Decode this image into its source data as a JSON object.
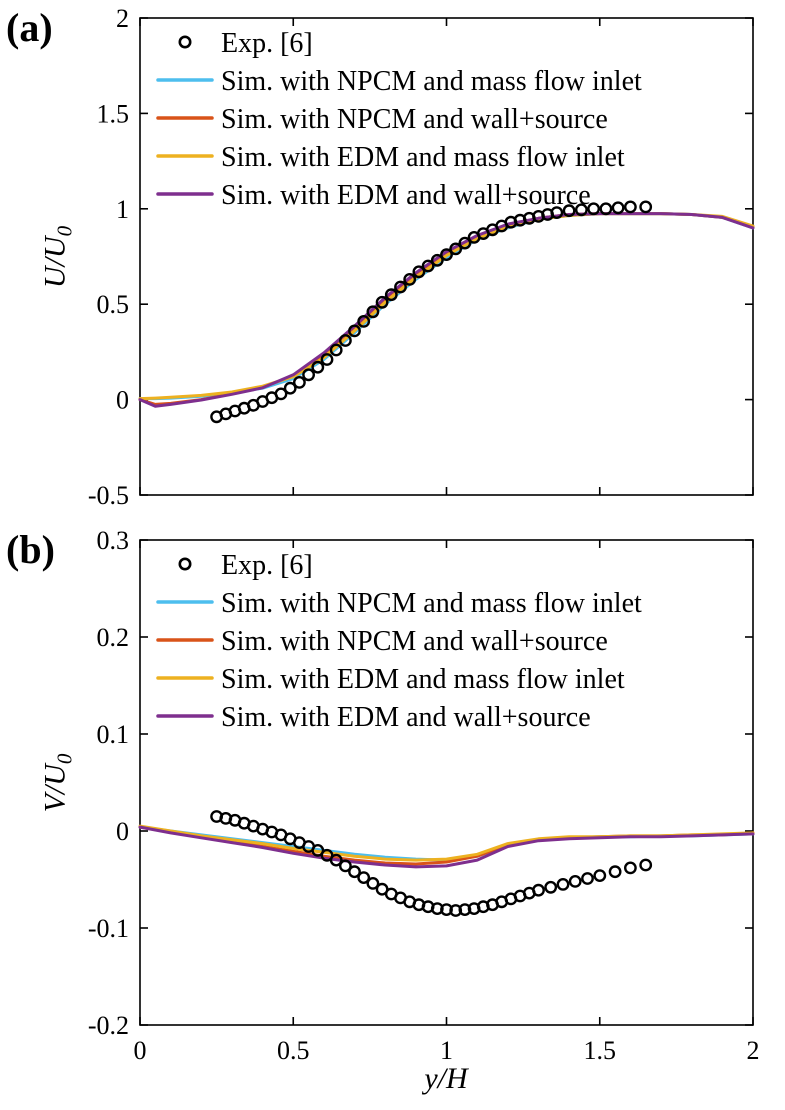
{
  "xlabel": "y/H",
  "panels": [
    {
      "label": "(a)"
    },
    {
      "label": "(b)"
    }
  ],
  "colors": {
    "exp": "#000000",
    "npcm_massflow": "#4dbeee",
    "npcm_wallsource": "#d95319",
    "edm_massflow": "#edb120",
    "edm_wallsource": "#7e2f8e"
  },
  "chart_data": [
    {
      "type": "line",
      "panel": "(a)",
      "ylabel": "U/U",
      "ylabel_sub": "0",
      "xlabel": "y/H",
      "xlim": [
        0,
        2
      ],
      "ylim": [
        -0.5,
        2
      ],
      "xticks": [
        0,
        0.5,
        1,
        1.5,
        2
      ],
      "xtick_labels": [
        "0",
        "0.5",
        "1",
        "1.5",
        "2"
      ],
      "show_xtick_labels": false,
      "yticks": [
        -0.5,
        0,
        0.5,
        1,
        1.5,
        2
      ],
      "ytick_labels": [
        "-0.5",
        "0",
        "0.5",
        "1",
        "1.5",
        "2"
      ],
      "grid": false,
      "legend_position": "top-left-inside",
      "exp": {
        "name": "Exp. [6]",
        "x": [
          0.25,
          0.28,
          0.31,
          0.34,
          0.37,
          0.4,
          0.43,
          0.46,
          0.49,
          0.52,
          0.55,
          0.58,
          0.61,
          0.64,
          0.67,
          0.7,
          0.73,
          0.76,
          0.79,
          0.82,
          0.85,
          0.88,
          0.91,
          0.94,
          0.97,
          1.0,
          1.03,
          1.06,
          1.09,
          1.12,
          1.15,
          1.18,
          1.21,
          1.24,
          1.27,
          1.3,
          1.33,
          1.36,
          1.4,
          1.44,
          1.48,
          1.52,
          1.56,
          1.6,
          1.65
        ],
        "y": [
          -0.09,
          -0.075,
          -0.06,
          -0.045,
          -0.03,
          -0.01,
          0.01,
          0.03,
          0.06,
          0.09,
          0.13,
          0.17,
          0.21,
          0.26,
          0.31,
          0.36,
          0.41,
          0.46,
          0.51,
          0.55,
          0.59,
          0.63,
          0.67,
          0.7,
          0.73,
          0.76,
          0.79,
          0.82,
          0.85,
          0.87,
          0.89,
          0.91,
          0.93,
          0.94,
          0.95,
          0.96,
          0.97,
          0.98,
          0.99,
          0.995,
          1.0,
          1.0,
          1.005,
          1.01,
          1.01
        ]
      },
      "series": [
        {
          "name": "Sim. with NPCM and mass flow inlet",
          "color": "#4dbeee",
          "x": [
            0,
            0.05,
            0.1,
            0.2,
            0.3,
            0.4,
            0.5,
            0.6,
            0.7,
            0.8,
            0.9,
            1.0,
            1.1,
            1.2,
            1.3,
            1.4,
            1.5,
            1.6,
            1.7,
            1.8,
            1.9,
            2.0
          ],
          "y": [
            0.005,
            0.005,
            0.008,
            0.018,
            0.035,
            0.06,
            0.11,
            0.21,
            0.35,
            0.5,
            0.63,
            0.745,
            0.84,
            0.9,
            0.945,
            0.965,
            0.975,
            0.975,
            0.975,
            0.97,
            0.955,
            0.9
          ]
        },
        {
          "name": "Sim. with NPCM and wall+source",
          "color": "#d95319",
          "x": [
            0,
            0.05,
            0.1,
            0.2,
            0.3,
            0.4,
            0.5,
            0.6,
            0.7,
            0.8,
            0.9,
            1.0,
            1.1,
            1.2,
            1.3,
            1.4,
            1.5,
            1.6,
            1.7,
            1.8,
            1.9,
            2.0
          ],
          "y": [
            0.0,
            -0.025,
            -0.02,
            0.0,
            0.03,
            0.065,
            0.125,
            0.24,
            0.38,
            0.53,
            0.66,
            0.77,
            0.855,
            0.915,
            0.95,
            0.97,
            0.975,
            0.975,
            0.975,
            0.97,
            0.955,
            0.905
          ]
        },
        {
          "name": "Sim. with EDM and mass flow inlet",
          "color": "#edb120",
          "x": [
            0,
            0.05,
            0.1,
            0.2,
            0.3,
            0.4,
            0.5,
            0.6,
            0.7,
            0.8,
            0.9,
            1.0,
            1.1,
            1.2,
            1.3,
            1.4,
            1.5,
            1.6,
            1.7,
            1.8,
            1.9,
            2.0
          ],
          "y": [
            0.005,
            0.008,
            0.012,
            0.022,
            0.04,
            0.07,
            0.12,
            0.22,
            0.36,
            0.51,
            0.64,
            0.755,
            0.845,
            0.905,
            0.945,
            0.965,
            0.975,
            0.975,
            0.975,
            0.97,
            0.96,
            0.91
          ]
        },
        {
          "name": "Sim. with EDM and wall+source",
          "color": "#7e2f8e",
          "x": [
            0,
            0.05,
            0.1,
            0.2,
            0.3,
            0.4,
            0.5,
            0.6,
            0.7,
            0.8,
            0.9,
            1.0,
            1.1,
            1.2,
            1.3,
            1.4,
            1.5,
            1.6,
            1.7,
            1.8,
            1.9,
            2.0
          ],
          "y": [
            0.0,
            -0.035,
            -0.025,
            -0.002,
            0.028,
            0.062,
            0.13,
            0.245,
            0.385,
            0.535,
            0.665,
            0.775,
            0.86,
            0.92,
            0.95,
            0.97,
            0.975,
            0.975,
            0.975,
            0.97,
            0.955,
            0.9
          ]
        }
      ]
    },
    {
      "type": "line",
      "panel": "(b)",
      "ylabel": "V/U",
      "ylabel_sub": "0",
      "xlabel": "y/H",
      "xlim": [
        0,
        2
      ],
      "ylim": [
        -0.2,
        0.3
      ],
      "xticks": [
        0,
        0.5,
        1,
        1.5,
        2
      ],
      "xtick_labels": [
        "0",
        "0.5",
        "1",
        "1.5",
        "2"
      ],
      "show_xtick_labels": true,
      "yticks": [
        -0.2,
        -0.1,
        0,
        0.1,
        0.2,
        0.3
      ],
      "ytick_labels": [
        "-0.2",
        "-0.1",
        "0",
        "0.1",
        "0.2",
        "0.3"
      ],
      "grid": false,
      "legend_position": "top-left-inside",
      "exp": {
        "name": "Exp. [6]",
        "x": [
          0.25,
          0.28,
          0.31,
          0.34,
          0.37,
          0.4,
          0.43,
          0.46,
          0.49,
          0.52,
          0.55,
          0.58,
          0.61,
          0.64,
          0.67,
          0.7,
          0.73,
          0.76,
          0.79,
          0.82,
          0.85,
          0.88,
          0.91,
          0.94,
          0.97,
          1.0,
          1.03,
          1.06,
          1.09,
          1.12,
          1.15,
          1.18,
          1.21,
          1.24,
          1.27,
          1.3,
          1.34,
          1.38,
          1.42,
          1.46,
          1.5,
          1.55,
          1.6,
          1.65
        ],
        "y": [
          0.015,
          0.013,
          0.011,
          0.008,
          0.005,
          0.002,
          -0.001,
          -0.004,
          -0.008,
          -0.012,
          -0.016,
          -0.02,
          -0.025,
          -0.03,
          -0.036,
          -0.042,
          -0.048,
          -0.054,
          -0.06,
          -0.065,
          -0.069,
          -0.073,
          -0.076,
          -0.078,
          -0.08,
          -0.081,
          -0.082,
          -0.081,
          -0.08,
          -0.078,
          -0.076,
          -0.073,
          -0.07,
          -0.067,
          -0.064,
          -0.061,
          -0.058,
          -0.055,
          -0.052,
          -0.049,
          -0.046,
          -0.042,
          -0.038,
          -0.035
        ]
      },
      "series": [
        {
          "name": "Sim. with NPCM and mass flow inlet",
          "color": "#4dbeee",
          "x": [
            0,
            0.1,
            0.2,
            0.3,
            0.4,
            0.5,
            0.6,
            0.7,
            0.8,
            0.9,
            1.0,
            1.1,
            1.2,
            1.3,
            1.4,
            1.5,
            1.6,
            1.7,
            1.8,
            1.9,
            2.0
          ],
          "y": [
            0.004,
            0.0,
            -0.004,
            -0.008,
            -0.012,
            -0.016,
            -0.02,
            -0.024,
            -0.027,
            -0.029,
            -0.03,
            -0.026,
            -0.015,
            -0.009,
            -0.007,
            -0.006,
            -0.006,
            -0.005,
            -0.005,
            -0.004,
            -0.003
          ]
        },
        {
          "name": "Sim. with NPCM and wall+source",
          "color": "#d95319",
          "x": [
            0,
            0.1,
            0.2,
            0.3,
            0.4,
            0.5,
            0.6,
            0.7,
            0.8,
            0.9,
            1.0,
            1.1,
            1.2,
            1.3,
            1.4,
            1.5,
            1.6,
            1.7,
            1.8,
            1.9,
            2.0
          ],
          "y": [
            0.004,
            -0.001,
            -0.006,
            -0.011,
            -0.016,
            -0.021,
            -0.026,
            -0.03,
            -0.033,
            -0.034,
            -0.032,
            -0.026,
            -0.014,
            -0.009,
            -0.007,
            -0.006,
            -0.005,
            -0.005,
            -0.004,
            -0.004,
            -0.002
          ]
        },
        {
          "name": "Sim. with EDM and mass flow inlet",
          "color": "#edb120",
          "x": [
            0,
            0.1,
            0.2,
            0.3,
            0.4,
            0.5,
            0.6,
            0.7,
            0.8,
            0.9,
            1.0,
            1.1,
            1.2,
            1.3,
            1.4,
            1.5,
            1.6,
            1.7,
            1.8,
            1.9,
            2.0
          ],
          "y": [
            0.005,
            0.0,
            -0.005,
            -0.009,
            -0.013,
            -0.018,
            -0.022,
            -0.026,
            -0.029,
            -0.03,
            -0.029,
            -0.024,
            -0.013,
            -0.008,
            -0.006,
            -0.006,
            -0.005,
            -0.005,
            -0.004,
            -0.003,
            -0.002
          ]
        },
        {
          "name": "Sim. with EDM and wall+source",
          "color": "#7e2f8e",
          "x": [
            0,
            0.1,
            0.2,
            0.3,
            0.4,
            0.5,
            0.6,
            0.7,
            0.8,
            0.9,
            1.0,
            1.1,
            1.2,
            1.3,
            1.4,
            1.5,
            1.6,
            1.7,
            1.8,
            1.9,
            2.0
          ],
          "y": [
            0.004,
            -0.002,
            -0.007,
            -0.012,
            -0.017,
            -0.023,
            -0.028,
            -0.032,
            -0.035,
            -0.037,
            -0.036,
            -0.03,
            -0.016,
            -0.01,
            -0.008,
            -0.007,
            -0.006,
            -0.006,
            -0.005,
            -0.004,
            -0.003
          ]
        }
      ]
    }
  ]
}
